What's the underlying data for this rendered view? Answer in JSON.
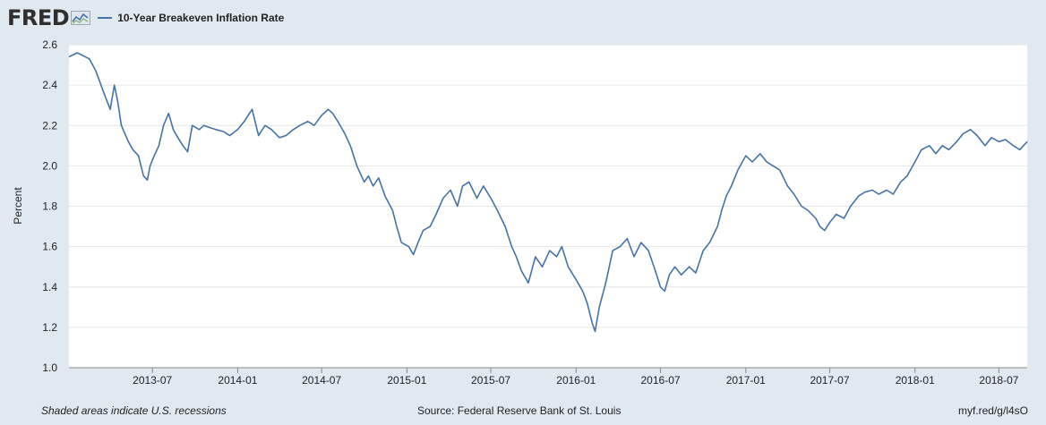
{
  "brand": {
    "logo_text": "FRED",
    "icon": "line-chart-icon"
  },
  "colors": {
    "background": "#e1e9f0",
    "plot_bg": "#ffffff",
    "series": "#4572a7",
    "grid": "#e6e6e6"
  },
  "footer": {
    "recessions_note": "Shaded areas indicate U.S. recessions",
    "source": "Source: Federal Reserve Bank of St. Louis",
    "short_url": "myf.red/g/l4sO"
  },
  "chart_data": {
    "type": "line",
    "title": "",
    "xlabel": "",
    "ylabel": "Percent",
    "ylim": [
      1.0,
      2.6
    ],
    "xlim": [
      "2013-01-02",
      "2018-08-31"
    ],
    "yticks": [
      1.0,
      1.2,
      1.4,
      1.6,
      1.8,
      2.0,
      2.2,
      2.4,
      2.6
    ],
    "ytick_labels": [
      "1.0",
      "1.2",
      "1.4",
      "1.6",
      "1.8",
      "2.0",
      "2.2",
      "2.4",
      "2.6"
    ],
    "xticks": [
      "2013-07-01",
      "2014-01-01",
      "2014-07-01",
      "2015-01-01",
      "2015-07-01",
      "2016-01-01",
      "2016-07-01",
      "2017-01-01",
      "2017-07-01",
      "2018-01-01",
      "2018-07-01"
    ],
    "xtick_labels": [
      "2013-07",
      "2014-01",
      "2014-07",
      "2015-01",
      "2015-07",
      "2016-01",
      "2016-07",
      "2017-01",
      "2017-07",
      "2018-01",
      "2018-07"
    ],
    "grid": true,
    "legend_position": "top-left",
    "series": [
      {
        "name": "10-Year Breakeven Inflation Rate",
        "x": [
          "2013-01-02",
          "2013-01-20",
          "2013-02-15",
          "2013-03-01",
          "2013-03-20",
          "2013-04-01",
          "2013-04-10",
          "2013-04-17",
          "2013-04-25",
          "2013-05-10",
          "2013-05-20",
          "2013-06-01",
          "2013-06-12",
          "2013-06-20",
          "2013-06-26",
          "2013-07-05",
          "2013-07-15",
          "2013-07-25",
          "2013-08-05",
          "2013-08-15",
          "2013-08-25",
          "2013-09-05",
          "2013-09-15",
          "2013-09-25",
          "2013-10-10",
          "2013-10-20",
          "2013-11-01",
          "2013-11-15",
          "2013-12-01",
          "2013-12-15",
          "2014-01-01",
          "2014-01-15",
          "2014-02-01",
          "2014-02-15",
          "2014-03-01",
          "2014-03-15",
          "2014-04-01",
          "2014-04-15",
          "2014-05-01",
          "2014-05-15",
          "2014-06-01",
          "2014-06-15",
          "2014-07-01",
          "2014-07-15",
          "2014-07-25",
          "2014-08-05",
          "2014-08-20",
          "2014-09-01",
          "2014-09-15",
          "2014-10-01",
          "2014-10-10",
          "2014-10-20",
          "2014-11-01",
          "2014-11-15",
          "2014-12-01",
          "2014-12-10",
          "2014-12-20",
          "2015-01-05",
          "2015-01-15",
          "2015-01-25",
          "2015-02-05",
          "2015-02-20",
          "2015-03-05",
          "2015-03-20",
          "2015-04-05",
          "2015-04-20",
          "2015-05-01",
          "2015-05-15",
          "2015-06-01",
          "2015-06-15",
          "2015-07-01",
          "2015-07-15",
          "2015-08-01",
          "2015-08-15",
          "2015-08-25",
          "2015-09-05",
          "2015-09-20",
          "2015-10-05",
          "2015-10-20",
          "2015-11-05",
          "2015-11-20",
          "2015-12-01",
          "2015-12-15",
          "2016-01-05",
          "2016-01-15",
          "2016-01-25",
          "2016-02-05",
          "2016-02-11",
          "2016-02-20",
          "2016-03-05",
          "2016-03-20",
          "2016-04-05",
          "2016-04-20",
          "2016-05-05",
          "2016-05-20",
          "2016-06-05",
          "2016-06-20",
          "2016-07-01",
          "2016-07-10",
          "2016-07-20",
          "2016-08-01",
          "2016-08-15",
          "2016-09-01",
          "2016-09-15",
          "2016-10-01",
          "2016-10-15",
          "2016-11-01",
          "2016-11-10",
          "2016-11-20",
          "2016-12-01",
          "2016-12-15",
          "2017-01-01",
          "2017-01-15",
          "2017-02-01",
          "2017-02-15",
          "2017-03-01",
          "2017-03-15",
          "2017-04-01",
          "2017-04-15",
          "2017-05-01",
          "2017-05-15",
          "2017-06-01",
          "2017-06-10",
          "2017-06-20",
          "2017-07-01",
          "2017-07-15",
          "2017-08-01",
          "2017-08-15",
          "2017-09-01",
          "2017-09-15",
          "2017-10-01",
          "2017-10-15",
          "2017-11-01",
          "2017-11-15",
          "2017-12-01",
          "2017-12-15",
          "2018-01-01",
          "2018-01-15",
          "2018-02-01",
          "2018-02-15",
          "2018-03-01",
          "2018-03-15",
          "2018-04-01",
          "2018-04-15",
          "2018-05-01",
          "2018-05-15",
          "2018-06-01",
          "2018-06-15",
          "2018-07-01",
          "2018-07-15",
          "2018-08-01",
          "2018-08-15",
          "2018-08-31"
        ],
        "y": [
          2.54,
          2.56,
          2.53,
          2.47,
          2.35,
          2.28,
          2.4,
          2.32,
          2.2,
          2.12,
          2.08,
          2.05,
          1.95,
          1.93,
          2.0,
          2.05,
          2.1,
          2.2,
          2.26,
          2.18,
          2.14,
          2.1,
          2.07,
          2.2,
          2.18,
          2.2,
          2.19,
          2.18,
          2.17,
          2.15,
          2.18,
          2.22,
          2.28,
          2.15,
          2.2,
          2.18,
          2.14,
          2.15,
          2.18,
          2.2,
          2.22,
          2.2,
          2.25,
          2.28,
          2.26,
          2.22,
          2.16,
          2.1,
          2.0,
          1.92,
          1.95,
          1.9,
          1.94,
          1.85,
          1.78,
          1.7,
          1.62,
          1.6,
          1.56,
          1.62,
          1.68,
          1.7,
          1.76,
          1.84,
          1.88,
          1.8,
          1.9,
          1.92,
          1.84,
          1.9,
          1.84,
          1.78,
          1.7,
          1.6,
          1.55,
          1.48,
          1.42,
          1.55,
          1.5,
          1.58,
          1.55,
          1.6,
          1.5,
          1.42,
          1.38,
          1.32,
          1.22,
          1.18,
          1.3,
          1.42,
          1.58,
          1.6,
          1.64,
          1.55,
          1.62,
          1.58,
          1.48,
          1.4,
          1.38,
          1.46,
          1.5,
          1.46,
          1.5,
          1.47,
          1.58,
          1.62,
          1.7,
          1.78,
          1.85,
          1.9,
          1.98,
          2.05,
          2.02,
          2.06,
          2.02,
          2.0,
          1.98,
          1.9,
          1.86,
          1.8,
          1.78,
          1.74,
          1.7,
          1.68,
          1.72,
          1.76,
          1.74,
          1.8,
          1.85,
          1.87,
          1.88,
          1.86,
          1.88,
          1.86,
          1.92,
          1.95,
          2.02,
          2.08,
          2.1,
          2.06,
          2.1,
          2.08,
          2.12,
          2.16,
          2.18,
          2.15,
          2.1,
          2.14,
          2.12,
          2.13,
          2.1,
          2.08,
          2.12
        ]
      }
    ]
  }
}
